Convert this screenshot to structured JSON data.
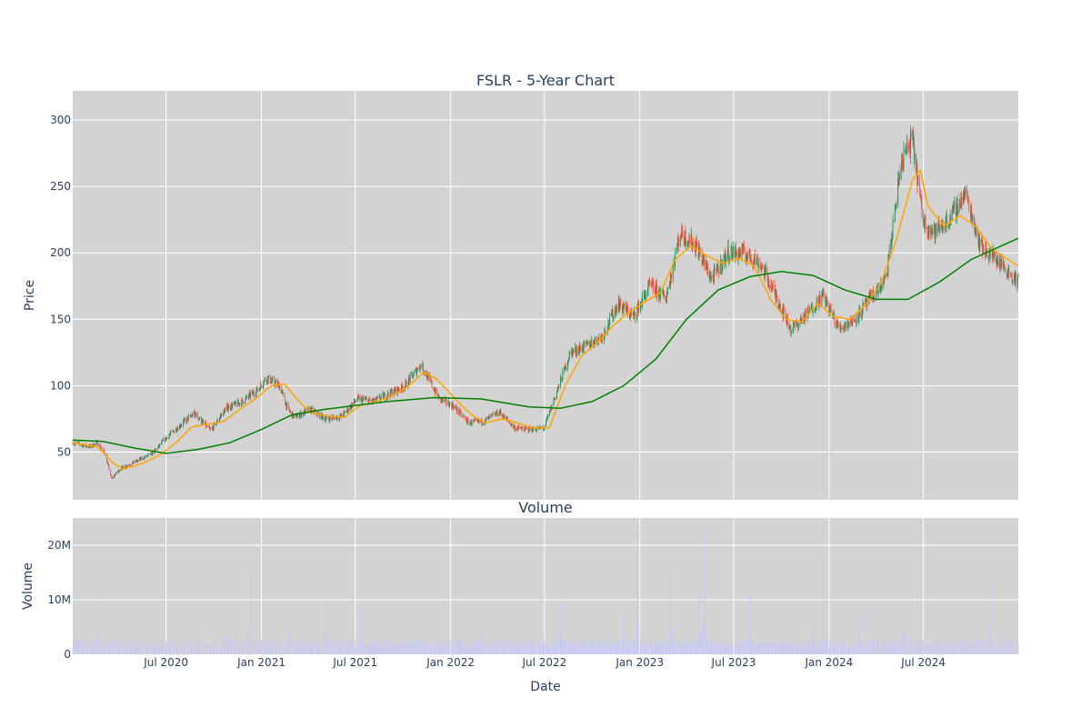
{
  "chart_data": [
    {
      "type": "candlestick",
      "title": "FSLR - 5-Year Chart",
      "xlabel": "",
      "ylabel": "Price",
      "ylim": [
        14,
        322
      ],
      "xlim": [
        "2020-01-03",
        "2024-12-31"
      ],
      "yticks": [
        50,
        100,
        150,
        200,
        250,
        300
      ],
      "grid": true,
      "background": "#d3d3d3",
      "increasing_color": "#2e8b57",
      "decreasing_color": "#ef553b",
      "close_series": [
        [
          "2020-01-03",
          57
        ],
        [
          "2020-02-05",
          54
        ],
        [
          "2020-02-20",
          57
        ],
        [
          "2020-03-05",
          49
        ],
        [
          "2020-03-18",
          30
        ],
        [
          "2020-04-05",
          38
        ],
        [
          "2020-05-05",
          43
        ],
        [
          "2020-06-05",
          49
        ],
        [
          "2020-07-05",
          62
        ],
        [
          "2020-08-05",
          73
        ],
        [
          "2020-08-25",
          79
        ],
        [
          "2020-09-25",
          66
        ],
        [
          "2020-10-25",
          83
        ],
        [
          "2020-11-25",
          88
        ],
        [
          "2020-12-25",
          97
        ],
        [
          "2021-01-10",
          106
        ],
        [
          "2021-02-05",
          100
        ],
        [
          "2021-02-20",
          83
        ],
        [
          "2021-03-05",
          76
        ],
        [
          "2021-04-05",
          82
        ],
        [
          "2021-05-05",
          75
        ],
        [
          "2021-06-05",
          77
        ],
        [
          "2021-07-05",
          90
        ],
        [
          "2021-08-05",
          88
        ],
        [
          "2021-09-05",
          94
        ],
        [
          "2021-10-05",
          100
        ],
        [
          "2021-11-05",
          116
        ],
        [
          "2021-12-10",
          90
        ],
        [
          "2022-01-05",
          85
        ],
        [
          "2022-02-05",
          72
        ],
        [
          "2022-03-05",
          73
        ],
        [
          "2022-04-05",
          80
        ],
        [
          "2022-05-05",
          68
        ],
        [
          "2022-06-05",
          67
        ],
        [
          "2022-06-30",
          68
        ],
        [
          "2022-07-20",
          90
        ],
        [
          "2022-08-20",
          125
        ],
        [
          "2022-09-20",
          130
        ],
        [
          "2022-10-20",
          137
        ],
        [
          "2022-11-20",
          162
        ],
        [
          "2022-12-20",
          152
        ],
        [
          "2023-01-20",
          175
        ],
        [
          "2023-02-20",
          166
        ],
        [
          "2023-03-20",
          215
        ],
        [
          "2023-04-20",
          205
        ],
        [
          "2023-05-20",
          180
        ],
        [
          "2023-06-20",
          200
        ],
        [
          "2023-07-20",
          200
        ],
        [
          "2023-08-20",
          193
        ],
        [
          "2023-09-20",
          168
        ],
        [
          "2023-10-20",
          142
        ],
        [
          "2023-11-20",
          154
        ],
        [
          "2023-12-20",
          168
        ],
        [
          "2024-01-20",
          143
        ],
        [
          "2024-02-20",
          150
        ],
        [
          "2024-03-20",
          165
        ],
        [
          "2024-04-20",
          180
        ],
        [
          "2024-05-20",
          270
        ],
        [
          "2024-06-10",
          285
        ],
        [
          "2024-06-30",
          225
        ],
        [
          "2024-07-20",
          215
        ],
        [
          "2024-08-20",
          225
        ],
        [
          "2024-09-20",
          245
        ],
        [
          "2024-10-20",
          205
        ],
        [
          "2024-11-20",
          195
        ],
        [
          "2024-12-31",
          178
        ]
      ],
      "series": [
        {
          "name": "",
          "color": "#ffa500",
          "values": [
            [
              "2020-01-03",
              57
            ],
            [
              "2020-02-20",
              54
            ],
            [
              "2020-03-20",
              42
            ],
            [
              "2020-04-10",
              37
            ],
            [
              "2020-05-20",
              42
            ],
            [
              "2020-06-20",
              48
            ],
            [
              "2020-07-20",
              57
            ],
            [
              "2020-08-20",
              69
            ],
            [
              "2020-09-20",
              71
            ],
            [
              "2020-10-20",
              73
            ],
            [
              "2020-11-20",
              82
            ],
            [
              "2020-12-20",
              90
            ],
            [
              "2021-01-20",
              100
            ],
            [
              "2021-02-15",
              101
            ],
            [
              "2021-03-10",
              90
            ],
            [
              "2021-04-05",
              80
            ],
            [
              "2021-05-10",
              77
            ],
            [
              "2021-06-10",
              76
            ],
            [
              "2021-07-10",
              85
            ],
            [
              "2021-08-10",
              88
            ],
            [
              "2021-09-10",
              92
            ],
            [
              "2021-10-10",
              99
            ],
            [
              "2021-11-10",
              110
            ],
            [
              "2021-12-05",
              105
            ],
            [
              "2022-01-10",
              90
            ],
            [
              "2022-02-10",
              78
            ],
            [
              "2022-03-10",
              72
            ],
            [
              "2022-04-10",
              75
            ],
            [
              "2022-05-10",
              72
            ],
            [
              "2022-06-10",
              68
            ],
            [
              "2022-07-10",
              68
            ],
            [
              "2022-08-10",
              100
            ],
            [
              "2022-09-10",
              122
            ],
            [
              "2022-10-10",
              132
            ],
            [
              "2022-11-10",
              145
            ],
            [
              "2022-12-10",
              155
            ],
            [
              "2023-01-10",
              163
            ],
            [
              "2023-02-10",
              170
            ],
            [
              "2023-03-10",
              195
            ],
            [
              "2023-04-10",
              205
            ],
            [
              "2023-05-10",
              198
            ],
            [
              "2023-06-10",
              192
            ],
            [
              "2023-07-10",
              196
            ],
            [
              "2023-08-10",
              190
            ],
            [
              "2023-09-10",
              165
            ],
            [
              "2023-10-10",
              150
            ],
            [
              "2023-11-10",
              148
            ],
            [
              "2023-12-10",
              162
            ],
            [
              "2024-01-10",
              152
            ],
            [
              "2024-02-10",
              150
            ],
            [
              "2024-03-10",
              160
            ],
            [
              "2024-04-10",
              177
            ],
            [
              "2024-05-10",
              210
            ],
            [
              "2024-06-10",
              255
            ],
            [
              "2024-06-25",
              262
            ],
            [
              "2024-07-10",
              235
            ],
            [
              "2024-08-10",
              220
            ],
            [
              "2024-09-10",
              228
            ],
            [
              "2024-10-10",
              220
            ],
            [
              "2024-11-10",
              203
            ],
            [
              "2024-12-31",
              190
            ]
          ]
        },
        {
          "name": "",
          "color": "#008000",
          "values": [
            [
              "2020-01-03",
              59
            ],
            [
              "2020-03-01",
              58
            ],
            [
              "2020-05-01",
              53
            ],
            [
              "2020-07-01",
              49
            ],
            [
              "2020-09-01",
              52
            ],
            [
              "2020-11-01",
              57
            ],
            [
              "2021-01-01",
              67
            ],
            [
              "2021-03-01",
              78
            ],
            [
              "2021-05-01",
              82
            ],
            [
              "2021-07-01",
              85
            ],
            [
              "2021-09-01",
              88
            ],
            [
              "2021-12-01",
              91
            ],
            [
              "2022-03-01",
              90
            ],
            [
              "2022-06-01",
              84
            ],
            [
              "2022-08-01",
              83
            ],
            [
              "2022-10-01",
              88
            ],
            [
              "2022-12-01",
              100
            ],
            [
              "2023-02-01",
              120
            ],
            [
              "2023-04-01",
              150
            ],
            [
              "2023-06-01",
              172
            ],
            [
              "2023-08-01",
              182
            ],
            [
              "2023-10-01",
              186
            ],
            [
              "2023-12-01",
              183
            ],
            [
              "2024-02-01",
              172
            ],
            [
              "2024-04-01",
              165
            ],
            [
              "2024-06-01",
              165
            ],
            [
              "2024-08-01",
              178
            ],
            [
              "2024-10-01",
              195
            ],
            [
              "2024-12-31",
              211
            ]
          ]
        }
      ]
    },
    {
      "type": "bar",
      "title": "Volume",
      "xlabel": "Date",
      "ylabel": "Volume",
      "ylim": [
        0,
        25000000
      ],
      "yticks": [
        {
          "value": 0,
          "label": "0"
        },
        {
          "value": 10000000,
          "label": "10M"
        },
        {
          "value": 20000000,
          "label": "20M"
        }
      ],
      "xticks": [
        {
          "date": "2020-07-01",
          "label": "Jul 2020"
        },
        {
          "date": "2021-01-01",
          "label": "Jan 2021"
        },
        {
          "date": "2021-07-01",
          "label": "Jul 2021"
        },
        {
          "date": "2022-01-01",
          "label": "Jan 2022"
        },
        {
          "date": "2022-07-01",
          "label": "Jul 2022"
        },
        {
          "date": "2023-01-01",
          "label": "Jan 2023"
        },
        {
          "date": "2023-07-01",
          "label": "Jul 2023"
        },
        {
          "date": "2024-01-01",
          "label": "Jan 2024"
        },
        {
          "date": "2024-07-01",
          "label": "Jul 2024"
        }
      ],
      "bar_color": "#c9c9f2",
      "base_volume": 1800000,
      "spikes": [
        [
          "2020-01-10",
          7500000
        ],
        [
          "2020-02-20",
          9500000
        ],
        [
          "2020-09-01",
          5000000
        ],
        [
          "2020-10-25",
          11000000
        ],
        [
          "2020-11-12",
          3800000
        ],
        [
          "2020-12-10",
          15000000
        ],
        [
          "2020-12-28",
          4500000
        ],
        [
          "2021-02-25",
          7000000
        ],
        [
          "2021-05-05",
          9000000
        ],
        [
          "2021-07-15",
          8000000
        ],
        [
          "2021-10-25",
          3800000
        ],
        [
          "2022-03-01",
          8500000
        ],
        [
          "2022-04-10",
          4300000
        ],
        [
          "2022-08-01",
          9500000
        ],
        [
          "2022-08-20",
          4000000
        ],
        [
          "2022-12-01",
          8200000
        ],
        [
          "2022-12-28",
          22500000
        ],
        [
          "2023-03-01",
          15000000
        ],
        [
          "2023-04-25",
          10500000
        ],
        [
          "2023-05-05",
          23000000
        ],
        [
          "2023-08-01",
          11000000
        ],
        [
          "2023-12-01",
          5000000
        ],
        [
          "2024-02-28",
          8500000
        ],
        [
          "2024-05-25",
          14500000
        ],
        [
          "2024-11-05",
          13500000
        ]
      ]
    }
  ]
}
